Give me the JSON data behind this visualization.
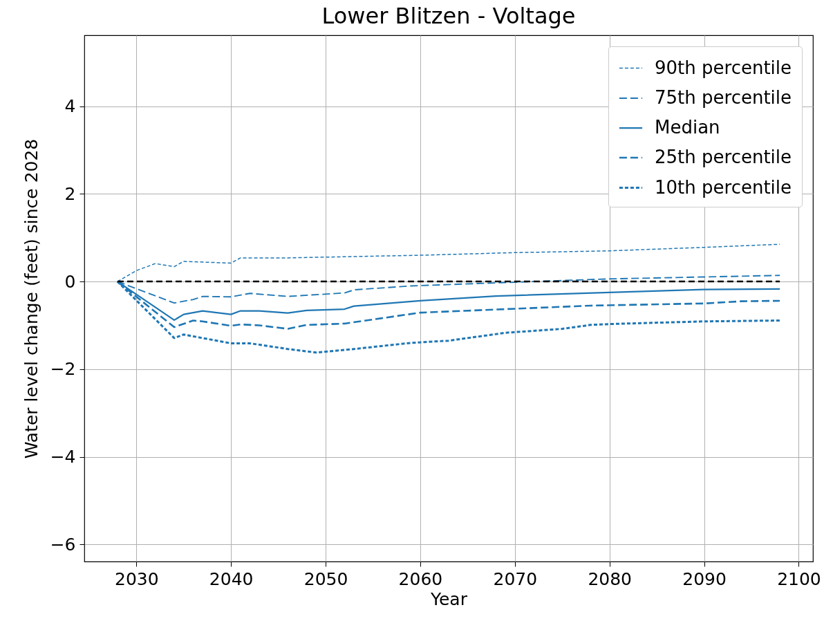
{
  "chart_data": {
    "type": "line",
    "title": "Lower Blitzen - Voltage",
    "xlabel": "Year",
    "ylabel": "Water level change (feet) since 2028",
    "xlim": [
      2024.5,
      2101.5
    ],
    "xticks": [
      2030,
      2040,
      2050,
      2060,
      2070,
      2080,
      2090,
      2100
    ],
    "ylim": [
      -6.39,
      5.62
    ],
    "yticks": [
      {
        "value": -6,
        "label": "−6"
      },
      {
        "value": -4,
        "label": "−4"
      },
      {
        "value": -2,
        "label": "−2"
      },
      0,
      2,
      4
    ],
    "grid": true,
    "legend": "top right",
    "series": [
      {
        "name": "90th percentile",
        "color": "#1f77b4",
        "line_style": "dotted",
        "x": [
          2028,
          2030,
          2032,
          2034,
          2035,
          2040,
          2041,
          2046,
          2060,
          2070,
          2080,
          2090,
          2098
        ],
        "values": [
          0,
          0.25,
          0.41,
          0.34,
          0.46,
          0.42,
          0.54,
          0.54,
          0.6,
          0.66,
          0.7,
          0.78,
          0.85
        ]
      },
      {
        "name": "75th percentile",
        "color": "#1f77b4",
        "line_style": "dashed",
        "x": [
          2028,
          2034,
          2036,
          2037,
          2040,
          2042,
          2046,
          2052,
          2053,
          2059,
          2072,
          2080,
          2098
        ],
        "values": [
          0,
          -0.49,
          -0.41,
          -0.34,
          -0.35,
          -0.27,
          -0.34,
          -0.26,
          -0.19,
          -0.1,
          0,
          0.06,
          0.14
        ]
      },
      {
        "name": "Median",
        "color": "#1f77b4",
        "line_style": "solid",
        "x": [
          2028,
          2034,
          2035,
          2037,
          2040,
          2041,
          2043,
          2046,
          2048,
          2052,
          2053,
          2060,
          2068,
          2080,
          2090,
          2098
        ],
        "values": [
          0,
          -0.88,
          -0.75,
          -0.67,
          -0.75,
          -0.67,
          -0.67,
          -0.72,
          -0.66,
          -0.63,
          -0.56,
          -0.44,
          -0.33,
          -0.25,
          -0.18,
          -0.17
        ]
      },
      {
        "name": "25th percentile",
        "color": "#1f77b4",
        "line_style": "dashed",
        "x": [
          2028,
          2034,
          2036,
          2037,
          2040,
          2041,
          2043,
          2046,
          2048,
          2052,
          2060,
          2078,
          2090,
          2094,
          2098
        ],
        "values": [
          0,
          -1.04,
          -0.89,
          -0.91,
          -1.01,
          -0.98,
          -1.0,
          -1.08,
          -0.99,
          -0.96,
          -0.71,
          -0.55,
          -0.5,
          -0.45,
          -0.44
        ]
      },
      {
        "name": "10th percentile",
        "color": "#1f77b4",
        "line_style": "dotted",
        "x": [
          2028,
          2034,
          2035,
          2040,
          2042,
          2046,
          2049,
          2053,
          2059,
          2063,
          2069,
          2075,
          2078,
          2080,
          2090,
          2098
        ],
        "values": [
          0,
          -1.29,
          -1.21,
          -1.41,
          -1.41,
          -1.54,
          -1.62,
          -1.54,
          -1.4,
          -1.35,
          -1.17,
          -1.08,
          -0.99,
          -0.97,
          -0.91,
          -0.89
        ]
      },
      {
        "color": "#000000",
        "line_style": "dashed",
        "x": [
          2028,
          2098
        ],
        "values": [
          0,
          0
        ]
      }
    ]
  }
}
